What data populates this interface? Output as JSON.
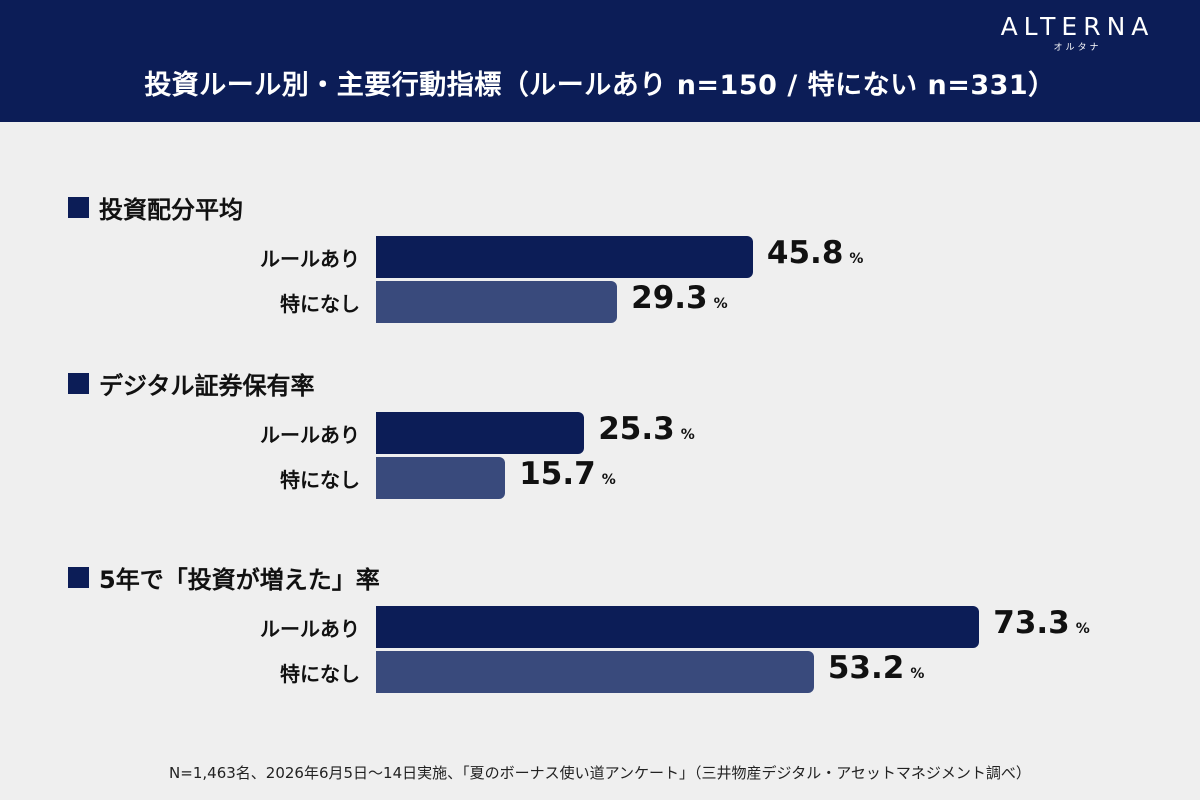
{
  "brand": {
    "name": "ALTERNA",
    "kana": "オルタナ"
  },
  "colors": {
    "header_bg": "#0c1d57",
    "series_rule": "#0c1d57",
    "series_none": "#394a7c",
    "background": "#efefef"
  },
  "chart_data": {
    "type": "bar",
    "orientation": "horizontal",
    "title": "投資ルール別・主要行動指標（ルールあり n=150 / 特にない n=331）",
    "unit": "%",
    "groups": [
      {
        "heading": "投資配分平均",
        "bars": [
          {
            "label": "ルールあり",
            "value": 45.8
          },
          {
            "label": "特になし",
            "value": 29.3
          }
        ]
      },
      {
        "heading": "デジタル証券保有率",
        "bars": [
          {
            "label": "ルールあり",
            "value": 25.3
          },
          {
            "label": "特になし",
            "value": 15.7
          }
        ]
      },
      {
        "heading": "5年で「投資が増えた」率",
        "bars": [
          {
            "label": "ルールあり",
            "value": 73.3
          },
          {
            "label": "特になし",
            "value": 53.2
          }
        ]
      }
    ]
  },
  "footnote": "N=1,463名、2026年6月5日〜14日実施、「夏のボーナス使い道アンケート」（三井物産デジタル・アセットマネジメント調べ）"
}
